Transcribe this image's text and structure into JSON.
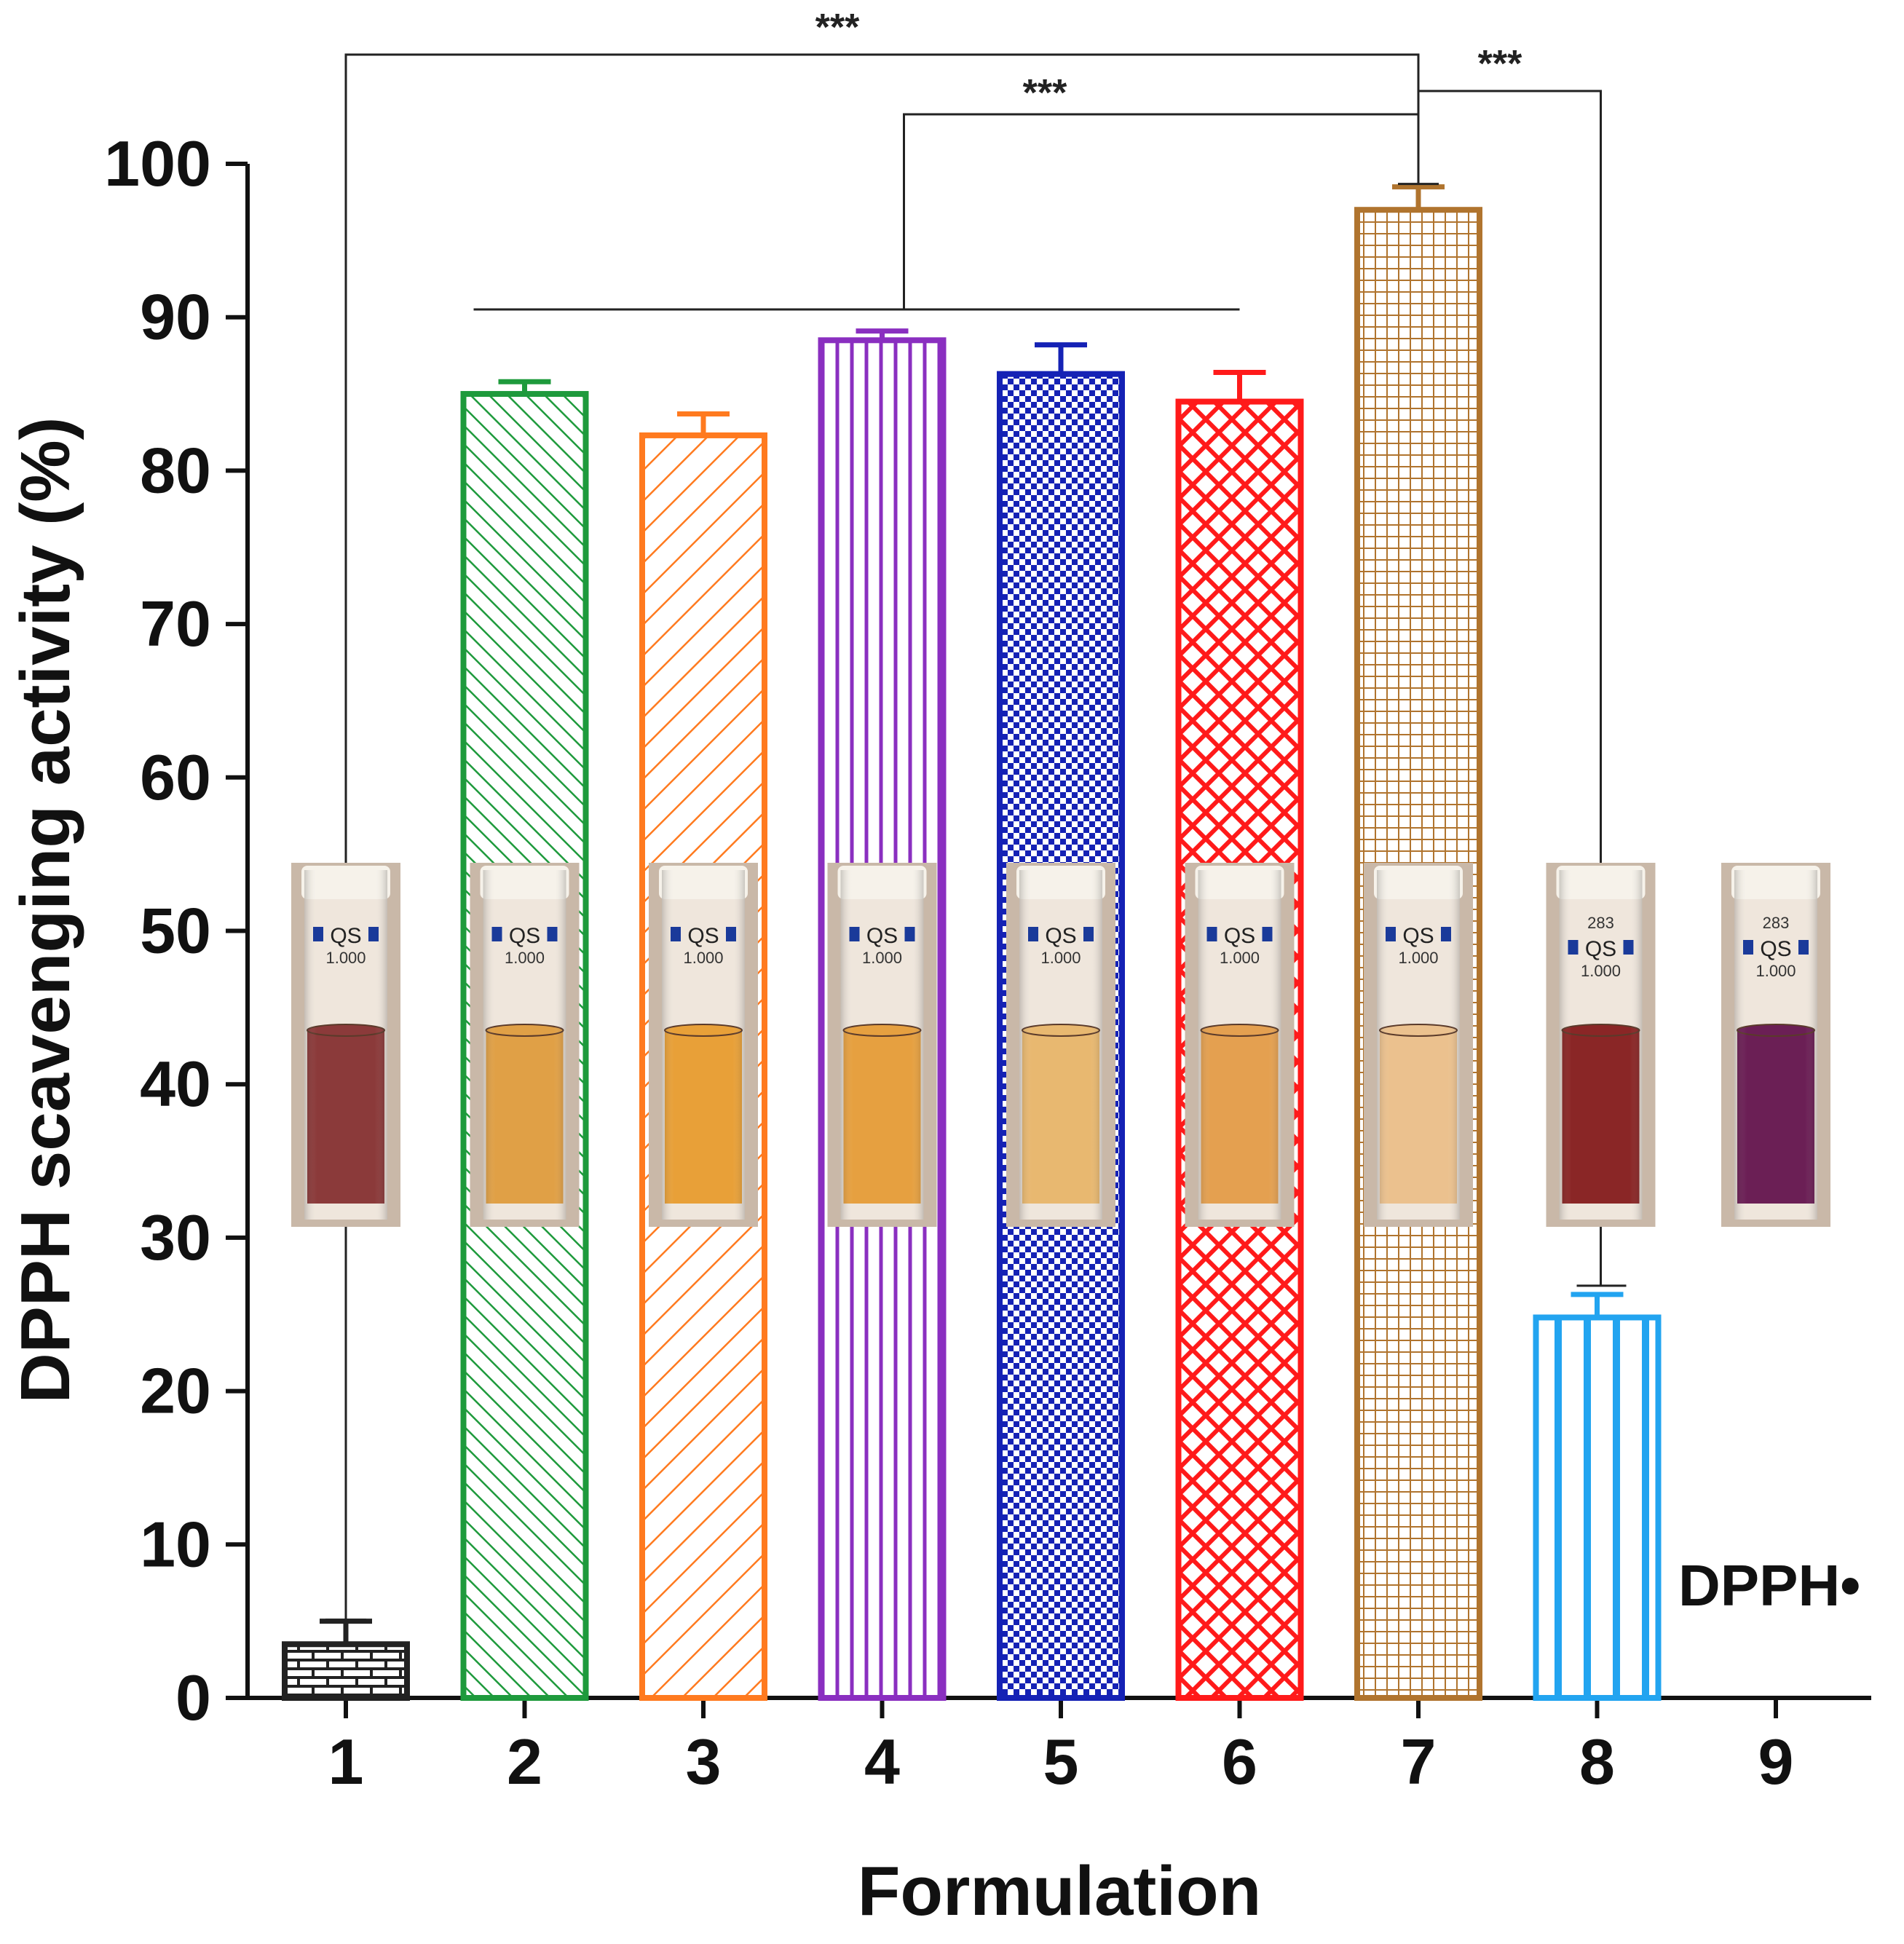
{
  "chart_data": {
    "type": "bar",
    "title": "",
    "xlabel": "Formulation",
    "ylabel": "DPPH scavenging activity (%)",
    "ylim": [
      0,
      100
    ],
    "yticks": [
      0,
      10,
      20,
      30,
      40,
      50,
      60,
      70,
      80,
      90,
      100
    ],
    "categories": [
      "1",
      "2",
      "3",
      "4",
      "5",
      "6",
      "7",
      "8",
      "9"
    ],
    "values": [
      3.5,
      85,
      82.3,
      88.5,
      86.3,
      84.5,
      97,
      24.8,
      null
    ],
    "errors": [
      1.5,
      0.8,
      1.4,
      0.6,
      1.9,
      1.9,
      1.5,
      1.5,
      null
    ],
    "colors": [
      "#222222",
      "#1e9a3c",
      "#ff7a1f",
      "#8a2fc0",
      "#1522b5",
      "#ff1a1a",
      "#b0742e",
      "#22a4f0",
      "#000000"
    ],
    "patterns": [
      "brick",
      "diagonal-right",
      "diagonal-left",
      "vertical",
      "checker",
      "diamond",
      "grid",
      "vertical-wide",
      "none"
    ],
    "significance": [
      {
        "from": "1",
        "to": "7",
        "label": "***"
      },
      {
        "from": "2-6",
        "to": "7",
        "label": "***"
      },
      {
        "from": "7",
        "to": "8",
        "label": "***"
      }
    ],
    "annotations": [
      "DPPH•"
    ],
    "cuvettes": [
      {
        "position": "1",
        "label": "QS",
        "sublabel": "1.000",
        "liquid_color": "#8b3a3a"
      },
      {
        "position": "2",
        "label": "QS",
        "sublabel": "1.000",
        "liquid_color": "#e0a046"
      },
      {
        "position": "3",
        "label": "QS",
        "sublabel": "1.000",
        "liquid_color": "#e8a038"
      },
      {
        "position": "4",
        "label": "QS",
        "sublabel": "1.000",
        "liquid_color": "#e6a040"
      },
      {
        "position": "5",
        "label": "QS",
        "sublabel": "1.000",
        "liquid_color": "#e8b870"
      },
      {
        "position": "6",
        "label": "QS",
        "sublabel": "1.000",
        "liquid_color": "#e4a050"
      },
      {
        "position": "7",
        "label": "QS",
        "sublabel": "1.000",
        "liquid_color": "#ebc18e"
      },
      {
        "position": "8",
        "label": "QS",
        "sublabel": "1.000",
        "top_number": "283",
        "liquid_color": "#8a2626"
      },
      {
        "position": "9",
        "label": "QS",
        "sublabel": "1.000",
        "top_number": "283",
        "liquid_color": "#6b1f55"
      }
    ]
  }
}
